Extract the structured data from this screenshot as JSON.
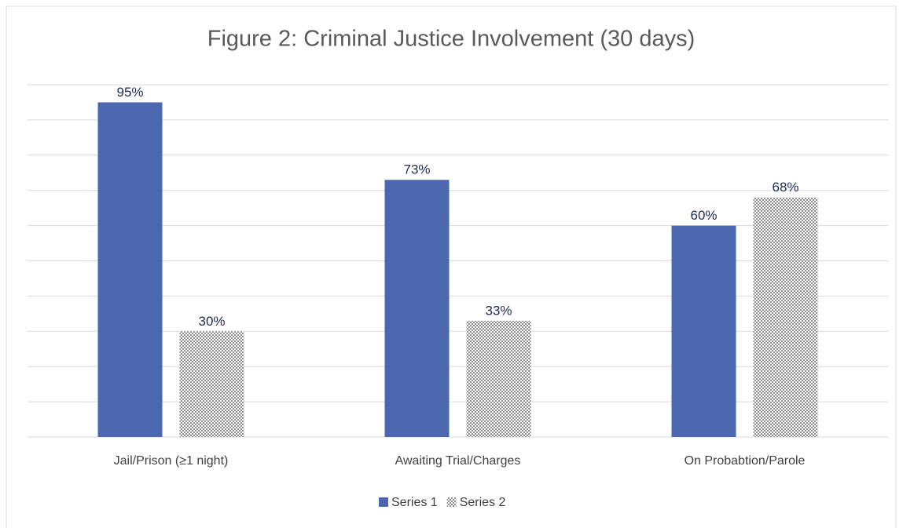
{
  "chart_data": {
    "type": "bar",
    "title": "Figure 2:  Criminal Justice Involvement (30 days)",
    "categories": [
      "Jail/Prison (≥1 night)",
      "Awaiting Trial/Charges",
      "On Probabtion/Parole"
    ],
    "series": [
      {
        "name": "Series 1",
        "color": "#4a67b0",
        "values": [
          95,
          73,
          60
        ],
        "value_labels": [
          "95%",
          "73%",
          "60%"
        ]
      },
      {
        "name": "Series 2",
        "color": "#8c8c8c",
        "pattern": "checker",
        "values": [
          30,
          33,
          68
        ],
        "value_labels": [
          "30%",
          "33%",
          "68%"
        ]
      }
    ],
    "ylim": [
      0,
      100
    ],
    "yticks": [
      0,
      10,
      20,
      30,
      40,
      50,
      60,
      70,
      80,
      90,
      100
    ],
    "show_tick_labels": false,
    "grid": true,
    "legend": "bottom"
  }
}
